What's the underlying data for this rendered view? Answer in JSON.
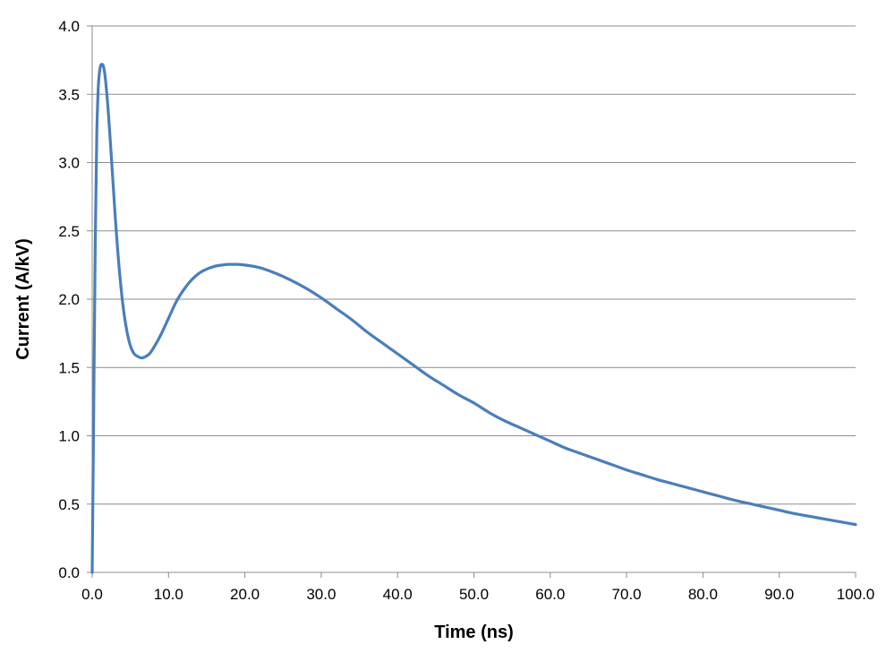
{
  "chart_data": {
    "type": "line",
    "title": "",
    "xlabel": "Time (ns)",
    "ylabel": "Current (A/kV)",
    "xlim": [
      0,
      100
    ],
    "ylim": [
      0,
      4.0
    ],
    "xticks": [
      0,
      10,
      20,
      30,
      40,
      50,
      60,
      70,
      80,
      90,
      100
    ],
    "xtick_labels": [
      "0.0",
      "10.0",
      "20.0",
      "30.0",
      "40.0",
      "50.0",
      "60.0",
      "70.0",
      "80.0",
      "90.0",
      "100.0"
    ],
    "yticks": [
      0,
      0.5,
      1.0,
      1.5,
      2.0,
      2.5,
      3.0,
      3.5,
      4.0
    ],
    "ytick_labels": [
      "0.0",
      "0.5",
      "1.0",
      "1.5",
      "2.0",
      "2.5",
      "3.0",
      "3.5",
      "4.0"
    ],
    "grid": "horizontal",
    "legend": "none",
    "series": [
      {
        "color": "#4a7ebb",
        "x": [
          0,
          0.2,
          0.4,
          0.6,
          0.8,
          1.0,
          1.3,
          1.6,
          2.0,
          2.5,
          3.0,
          3.5,
          4.0,
          4.5,
          5.0,
          5.5,
          6.0,
          6.5,
          7.0,
          7.5,
          8.0,
          9.0,
          10.0,
          11.0,
          12.0,
          13.0,
          14.0,
          15.0,
          16.0,
          17.0,
          18.0,
          19.0,
          20.0,
          22.0,
          24.0,
          26.0,
          28.0,
          30.0,
          32.0,
          34.0,
          36.0,
          38.0,
          40.0,
          42.0,
          44.0,
          46.0,
          48.0,
          50.0,
          52.0,
          54.0,
          56.0,
          58.0,
          60.0,
          62.0,
          64.0,
          66.0,
          68.0,
          70.0,
          72.0,
          74.0,
          76.0,
          78.0,
          80.0,
          82.0,
          84.0,
          86.0,
          88.0,
          90.0,
          92.0,
          94.0,
          96.0,
          98.0,
          100.0
        ],
        "y": [
          0.0,
          1.2,
          2.4,
          3.2,
          3.55,
          3.68,
          3.72,
          3.67,
          3.45,
          3.05,
          2.62,
          2.25,
          1.97,
          1.78,
          1.66,
          1.6,
          1.58,
          1.57,
          1.58,
          1.6,
          1.64,
          1.74,
          1.86,
          1.98,
          2.07,
          2.14,
          2.19,
          2.22,
          2.24,
          2.25,
          2.255,
          2.255,
          2.25,
          2.23,
          2.19,
          2.14,
          2.08,
          2.01,
          1.93,
          1.85,
          1.76,
          1.68,
          1.6,
          1.52,
          1.44,
          1.37,
          1.3,
          1.24,
          1.17,
          1.11,
          1.06,
          1.01,
          0.96,
          0.91,
          0.87,
          0.83,
          0.79,
          0.75,
          0.715,
          0.68,
          0.65,
          0.62,
          0.59,
          0.56,
          0.53,
          0.505,
          0.48,
          0.455,
          0.43,
          0.41,
          0.39,
          0.37,
          0.35
        ]
      }
    ]
  }
}
